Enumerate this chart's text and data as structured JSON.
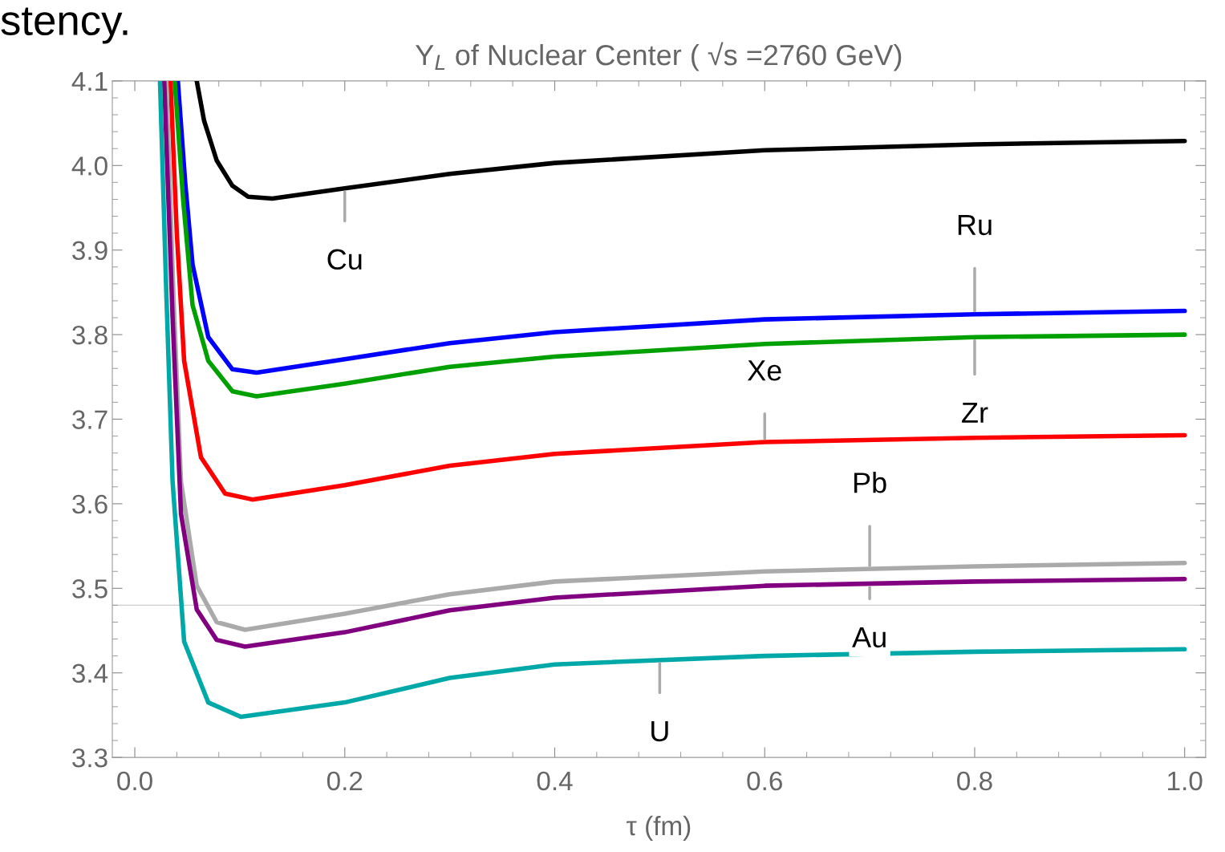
{
  "chart_data": {
    "type": "line",
    "title": "Y$_{L}$ of Nuclear Center ( √s =2760 GeV)",
    "xlabel": "τ (fm)",
    "xlim": [
      -0.0214,
      1.02
    ],
    "ylim": [
      3.3,
      4.1
    ],
    "xticks": [
      {
        "value": 0,
        "label": "0.0"
      },
      0.2,
      0.4,
      0.6,
      0.8,
      {
        "value": 1,
        "label": "1.0"
      }
    ],
    "yticks": [
      3.3,
      3.4,
      3.5,
      3.6,
      3.7,
      3.8,
      3.9,
      {
        "value": 4,
        "label": "4.0"
      },
      4.1
    ],
    "grid": false,
    "line_style": "solid",
    "marker": "none",
    "ref_lines": [
      {
        "axis": "y",
        "value": 3.48,
        "color": "#cccccc"
      }
    ],
    "series": [
      {
        "color": "#000000",
        "x": [
          0.059,
          0.066,
          0.078,
          0.093,
          0.108,
          0.131,
          0.2,
          0.3,
          0.4,
          0.6,
          0.8,
          1.0
        ],
        "values": [
          4.1,
          4.053,
          4.006,
          3.976,
          3.963,
          3.961,
          3.973,
          3.99,
          4.003,
          4.018,
          4.025,
          4.029
        ]
      },
      {
        "color": "#0000ff",
        "x": [
          0.041,
          0.048,
          0.055,
          0.07,
          0.093,
          0.116,
          0.2,
          0.3,
          0.4,
          0.6,
          0.8,
          1.0
        ],
        "values": [
          4.1,
          3.98,
          3.883,
          3.797,
          3.759,
          3.755,
          3.771,
          3.79,
          3.803,
          3.818,
          3.824,
          3.828
        ]
      },
      {
        "color": "#00a000",
        "x": [
          0.038,
          0.046,
          0.055,
          0.07,
          0.093,
          0.116,
          0.2,
          0.3,
          0.4,
          0.6,
          0.8,
          1.0
        ],
        "values": [
          4.1,
          3.96,
          3.835,
          3.769,
          3.733,
          3.727,
          3.742,
          3.762,
          3.774,
          3.789,
          3.797,
          3.8
        ]
      },
      {
        "color": "#ff0000",
        "x": [
          0.034,
          0.04,
          0.047,
          0.063,
          0.086,
          0.112,
          0.2,
          0.3,
          0.4,
          0.6,
          0.8,
          1.0
        ],
        "values": [
          4.1,
          3.92,
          3.769,
          3.655,
          3.612,
          3.605,
          3.622,
          3.645,
          3.659,
          3.673,
          3.678,
          3.681
        ]
      },
      {
        "color": "#aaaaaa",
        "x": [
          0.03,
          0.037,
          0.044,
          0.059,
          0.078,
          0.105,
          0.2,
          0.3,
          0.4,
          0.6,
          0.8,
          1.0
        ],
        "values": [
          4.1,
          3.84,
          3.626,
          3.503,
          3.46,
          3.451,
          3.47,
          3.493,
          3.508,
          3.52,
          3.526,
          3.53
        ]
      },
      {
        "color": "#800080",
        "x": [
          0.028,
          0.036,
          0.044,
          0.059,
          0.078,
          0.105,
          0.2,
          0.3,
          0.4,
          0.6,
          0.8,
          1.0
        ],
        "values": [
          4.1,
          3.82,
          3.588,
          3.475,
          3.439,
          3.431,
          3.448,
          3.474,
          3.489,
          3.503,
          3.508,
          3.511
        ]
      },
      {
        "color": "#00a8a8",
        "x": [
          0.024,
          0.03,
          0.036,
          0.047,
          0.07,
          0.101,
          0.2,
          0.3,
          0.4,
          0.6,
          0.8,
          1.0
        ],
        "values": [
          4.1,
          3.85,
          3.626,
          3.437,
          3.365,
          3.348,
          3.365,
          3.394,
          3.41,
          3.42,
          3.425,
          3.428
        ]
      }
    ],
    "annotations": [
      "stency.",
      {
        "text": "Cu",
        "x": 0.2,
        "y": 3.973
      },
      {
        "text": "Ru",
        "x": 0.8,
        "y": 3.824
      },
      {
        "text": "Zr",
        "x": 0.8,
        "y": 3.797
      },
      {
        "text": "Xe",
        "x": 0.6,
        "y": 3.673
      },
      {
        "text": "Pb",
        "x": 0.7,
        "y": 3.523
      },
      {
        "text": "Au",
        "x": 0.7,
        "y": 3.505
      },
      {
        "text": "U",
        "x": 0.5,
        "y": 3.415
      }
    ]
  }
}
